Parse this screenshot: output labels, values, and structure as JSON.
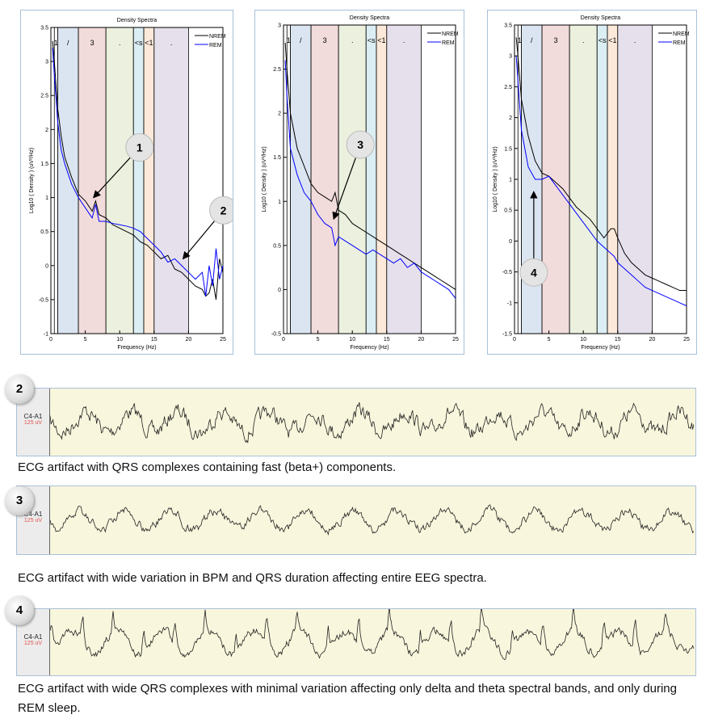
{
  "chart_data": [
    {
      "type": "line",
      "title": "Density Spectra",
      "xlabel": "Frequency (Hz)",
      "ylabel": "Log10 ( Density ) (uV²/Hz)",
      "xlim": [
        0,
        25
      ],
      "ylim": [
        -1,
        3.5
      ],
      "xticks": [
        0,
        5,
        10,
        15,
        20,
        25
      ],
      "yticks": [
        -1,
        -0.5,
        0,
        0.5,
        1,
        1.5,
        2,
        2.5,
        3,
        3.5
      ],
      "legend": "top-right",
      "bands": [
        {
          "from": 0.5,
          "to": 1,
          "label": "1",
          "color": "#ffffff"
        },
        {
          "from": 1,
          "to": 4,
          "label": "/",
          "color": "#dbe5f1"
        },
        {
          "from": 4,
          "to": 8,
          "label": "3",
          "color": "#f2dcdb"
        },
        {
          "from": 8,
          "to": 12,
          "label": ".",
          "color": "#ebf1de"
        },
        {
          "from": 12,
          "to": 13.5,
          "label": "<s",
          "color": "#dbeef3"
        },
        {
          "from": 13.5,
          "to": 15,
          "label": "<1",
          "color": "#fde9d9"
        },
        {
          "from": 15,
          "to": 20,
          "label": ".",
          "color": "#e5e0ec"
        }
      ],
      "series": [
        {
          "name": "NREM",
          "color": "#000000",
          "x": [
            0.25,
            0.5,
            1,
            1.5,
            2,
            3,
            4,
            5,
            6,
            6.5,
            7,
            8,
            9,
            10,
            11,
            12,
            13,
            14,
            15,
            16,
            17,
            18,
            19,
            20,
            21,
            22,
            22.5,
            23,
            23.5,
            24,
            24.5,
            25
          ],
          "y": [
            3.3,
            3.0,
            2.3,
            1.9,
            1.6,
            1.3,
            1.05,
            0.95,
            0.8,
            0.95,
            0.75,
            0.7,
            0.6,
            0.55,
            0.5,
            0.45,
            0.35,
            0.3,
            0.2,
            0.1,
            0.15,
            -0.05,
            -0.1,
            -0.2,
            -0.3,
            -0.35,
            -0.45,
            -0.4,
            -0.2,
            -0.5,
            0.1,
            -0.1
          ]
        },
        {
          "name": "REM",
          "color": "#0000ff",
          "x": [
            0.25,
            0.5,
            1,
            1.5,
            2,
            3,
            4,
            5,
            6,
            6.5,
            7,
            8,
            9,
            10,
            11,
            12,
            13,
            14,
            15,
            16,
            17,
            18,
            19,
            20,
            21,
            22,
            22.5,
            23,
            23.5,
            24,
            24.5,
            25
          ],
          "y": [
            3.2,
            2.8,
            2.1,
            1.7,
            1.5,
            1.2,
            1.0,
            0.85,
            0.7,
            0.9,
            0.65,
            0.65,
            0.62,
            0.6,
            0.58,
            0.55,
            0.5,
            0.4,
            0.3,
            0.2,
            0.05,
            0.1,
            0.0,
            -0.1,
            -0.2,
            -0.1,
            -0.45,
            0.0,
            -0.3,
            0.25,
            -0.2,
            0.0
          ]
        }
      ],
      "annotations": [
        {
          "label": "1",
          "at": [
            6.2,
            1.0
          ]
        },
        {
          "label": "2",
          "at": [
            19.2,
            0.1
          ]
        }
      ]
    },
    {
      "type": "line",
      "title": "Density Spectra",
      "xlabel": "Frequency (Hz)",
      "ylabel": "Log10 ( Density ) (uV²/Hz)",
      "xlim": [
        0,
        25
      ],
      "ylim": [
        -0.5,
        3
      ],
      "xticks": [
        0,
        5,
        10,
        15,
        20,
        25
      ],
      "yticks": [
        -0.5,
        0,
        0.5,
        1,
        1.5,
        2,
        2.5,
        3
      ],
      "legend": "top-right",
      "bands": [
        {
          "from": 0.5,
          "to": 1,
          "label": "1",
          "color": "#ffffff"
        },
        {
          "from": 1,
          "to": 4,
          "label": "/",
          "color": "#dbe5f1"
        },
        {
          "from": 4,
          "to": 8,
          "label": "3",
          "color": "#f2dcdb"
        },
        {
          "from": 8,
          "to": 12,
          "label": ".",
          "color": "#ebf1de"
        },
        {
          "from": 12,
          "to": 13.5,
          "label": "<s",
          "color": "#dbeef3"
        },
        {
          "from": 13.5,
          "to": 15,
          "label": "<1",
          "color": "#fde9d9"
        },
        {
          "from": 15,
          "to": 20,
          "label": ".",
          "color": "#e5e0ec"
        }
      ],
      "series": [
        {
          "name": "NREM",
          "color": "#000000",
          "x": [
            0.25,
            0.5,
            1,
            2,
            3,
            4,
            5,
            6,
            7,
            7.5,
            8,
            9,
            10,
            11,
            12,
            13,
            14,
            15,
            16,
            17,
            18,
            19,
            20,
            21,
            22,
            23,
            24,
            25
          ],
          "y": [
            2.8,
            2.5,
            2.0,
            1.6,
            1.4,
            1.2,
            1.1,
            1.05,
            1.0,
            1.1,
            0.9,
            0.85,
            0.75,
            0.7,
            0.65,
            0.6,
            0.55,
            0.5,
            0.45,
            0.4,
            0.35,
            0.3,
            0.25,
            0.2,
            0.15,
            0.1,
            0.05,
            0.0
          ]
        },
        {
          "name": "REM",
          "color": "#0000ff",
          "x": [
            0.25,
            0.5,
            1,
            2,
            3,
            4,
            5,
            6,
            7,
            7.5,
            8,
            9,
            10,
            11,
            12,
            13,
            14,
            15,
            16,
            17,
            18,
            19,
            20,
            21,
            22,
            23,
            24,
            25
          ],
          "y": [
            2.6,
            2.2,
            1.6,
            1.3,
            1.1,
            1.0,
            0.85,
            0.75,
            0.7,
            0.5,
            0.6,
            0.55,
            0.5,
            0.45,
            0.4,
            0.45,
            0.4,
            0.35,
            0.3,
            0.35,
            0.25,
            0.3,
            0.2,
            0.15,
            0.1,
            0.05,
            0.0,
            -0.1
          ]
        }
      ],
      "annotations": [
        {
          "label": "3",
          "at": [
            7.3,
            0.8
          ]
        }
      ]
    },
    {
      "type": "line",
      "title": "Density Spectra",
      "xlabel": "Frequency (Hz)",
      "ylabel": "Log10 ( Density ) (uV²/Hz)",
      "xlim": [
        0,
        25
      ],
      "ylim": [
        -1.5,
        3.5
      ],
      "xticks": [
        0,
        5,
        10,
        15,
        20,
        25
      ],
      "yticks": [
        -1.5,
        -1,
        -0.5,
        0,
        0.5,
        1,
        1.5,
        2,
        2.5,
        3,
        3.5
      ],
      "legend": "top-right",
      "bands": [
        {
          "from": 0.5,
          "to": 1,
          "label": "1",
          "color": "#ffffff"
        },
        {
          "from": 1,
          "to": 4,
          "label": "/",
          "color": "#dbe5f1"
        },
        {
          "from": 4,
          "to": 8,
          "label": "3",
          "color": "#f2dcdb"
        },
        {
          "from": 8,
          "to": 12,
          "label": ".",
          "color": "#ebf1de"
        },
        {
          "from": 12,
          "to": 13.5,
          "label": "<s",
          "color": "#dbeef3"
        },
        {
          "from": 13.5,
          "to": 15,
          "label": "<1",
          "color": "#fde9d9"
        },
        {
          "from": 15,
          "to": 20,
          "label": ".",
          "color": "#e5e0ec"
        }
      ],
      "series": [
        {
          "name": "NREM",
          "color": "#000000",
          "x": [
            0.25,
            0.5,
            1,
            2,
            3,
            4,
            5,
            6,
            7,
            8,
            9,
            10,
            11,
            12,
            13,
            14,
            14.5,
            15,
            16,
            17,
            18,
            19,
            20,
            21,
            22,
            23,
            24,
            25
          ],
          "y": [
            3.3,
            3.0,
            2.3,
            1.7,
            1.3,
            1.1,
            1.05,
            0.95,
            0.85,
            0.7,
            0.55,
            0.45,
            0.35,
            0.2,
            0.05,
            0.2,
            0.2,
            0.05,
            -0.2,
            -0.35,
            -0.45,
            -0.55,
            -0.6,
            -0.65,
            -0.7,
            -0.75,
            -0.8,
            -0.8
          ]
        },
        {
          "name": "REM",
          "color": "#0000ff",
          "x": [
            0.25,
            0.5,
            1,
            2,
            3,
            4,
            5,
            6,
            7,
            8,
            9,
            10,
            11,
            12,
            13,
            14,
            14.5,
            15,
            16,
            17,
            18,
            19,
            20,
            21,
            22,
            23,
            24,
            25
          ],
          "y": [
            3.0,
            2.6,
            1.8,
            1.2,
            1.0,
            1.0,
            1.05,
            0.9,
            0.75,
            0.6,
            0.45,
            0.3,
            0.15,
            0.0,
            -0.1,
            -0.2,
            -0.25,
            -0.35,
            -0.45,
            -0.55,
            -0.65,
            -0.75,
            -0.8,
            -0.85,
            -0.9,
            -0.95,
            -1.0,
            -1.05
          ]
        }
      ],
      "annotations": [
        {
          "label": "4",
          "at": [
            2.8,
            0.8
          ]
        }
      ]
    }
  ],
  "traces": [
    {
      "badge": "2",
      "channel": "C4-A1",
      "scale": "125 uV",
      "caption": "ECG artifact with QRS complexes containing fast (beta+) components."
    },
    {
      "badge": "3",
      "channel": "C4-A1",
      "scale": "125 uV",
      "caption": "ECG artifact with wide variation in BPM and QRS duration affecting entire EEG spectra."
    },
    {
      "badge": "4",
      "channel": "C4-A1",
      "scale": "125 uV",
      "caption": "ECG artifact with wide QRS complexes with minimal variation affecting only delta and theta spectral bands, and only during REM sleep."
    }
  ]
}
